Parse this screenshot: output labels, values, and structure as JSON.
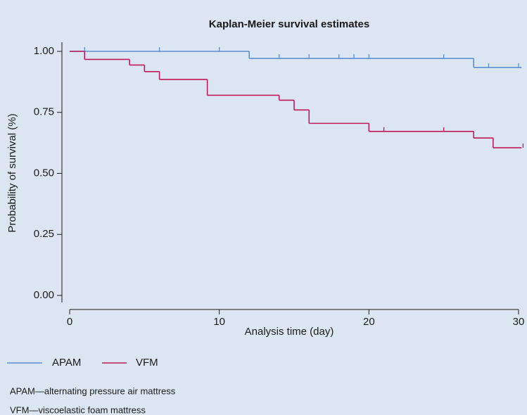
{
  "chart_data": {
    "type": "step",
    "title": "Kaplan-Meier survival estimates",
    "x_label": "Analysis time (day)",
    "y_label": "Probability of survival (%)",
    "xlim": [
      0,
      30
    ],
    "xticks": [
      0,
      10,
      20,
      30
    ],
    "ylim": [
      0,
      1
    ],
    "yticks": [
      {
        "value": 0,
        "label": "0.00"
      },
      {
        "value": 0.25,
        "label": "0.25"
      },
      {
        "value": 0.5,
        "label": "0.50"
      },
      {
        "value": 0.75,
        "label": "0.75"
      },
      {
        "value": 1,
        "label": "1.00"
      }
    ],
    "series": [
      {
        "name": "APAM",
        "color": "#5b8fd0",
        "x": [
          0,
          12,
          27,
          30.2
        ],
        "values": [
          1,
          0.971,
          0.934,
          0.934
        ],
        "censored": [
          1,
          6,
          10,
          14,
          16,
          18,
          19,
          20,
          25,
          28,
          30
        ]
      },
      {
        "name": "VFM",
        "color": "#c0185a",
        "x": [
          0,
          1,
          4,
          5,
          6,
          9.2,
          14,
          15,
          16,
          20,
          27,
          28.3,
          30.2
        ],
        "values": [
          1,
          0.967,
          0.944,
          0.917,
          0.885,
          0.82,
          0.8,
          0.76,
          0.705,
          0.672,
          0.645,
          0.605,
          0.605
        ],
        "censored": [
          21,
          25,
          30.3
        ]
      }
    ],
    "notes": [
      "APAM—alternating pressure air mattress",
      "VFM—viscoelastic foam mattress"
    ]
  }
}
